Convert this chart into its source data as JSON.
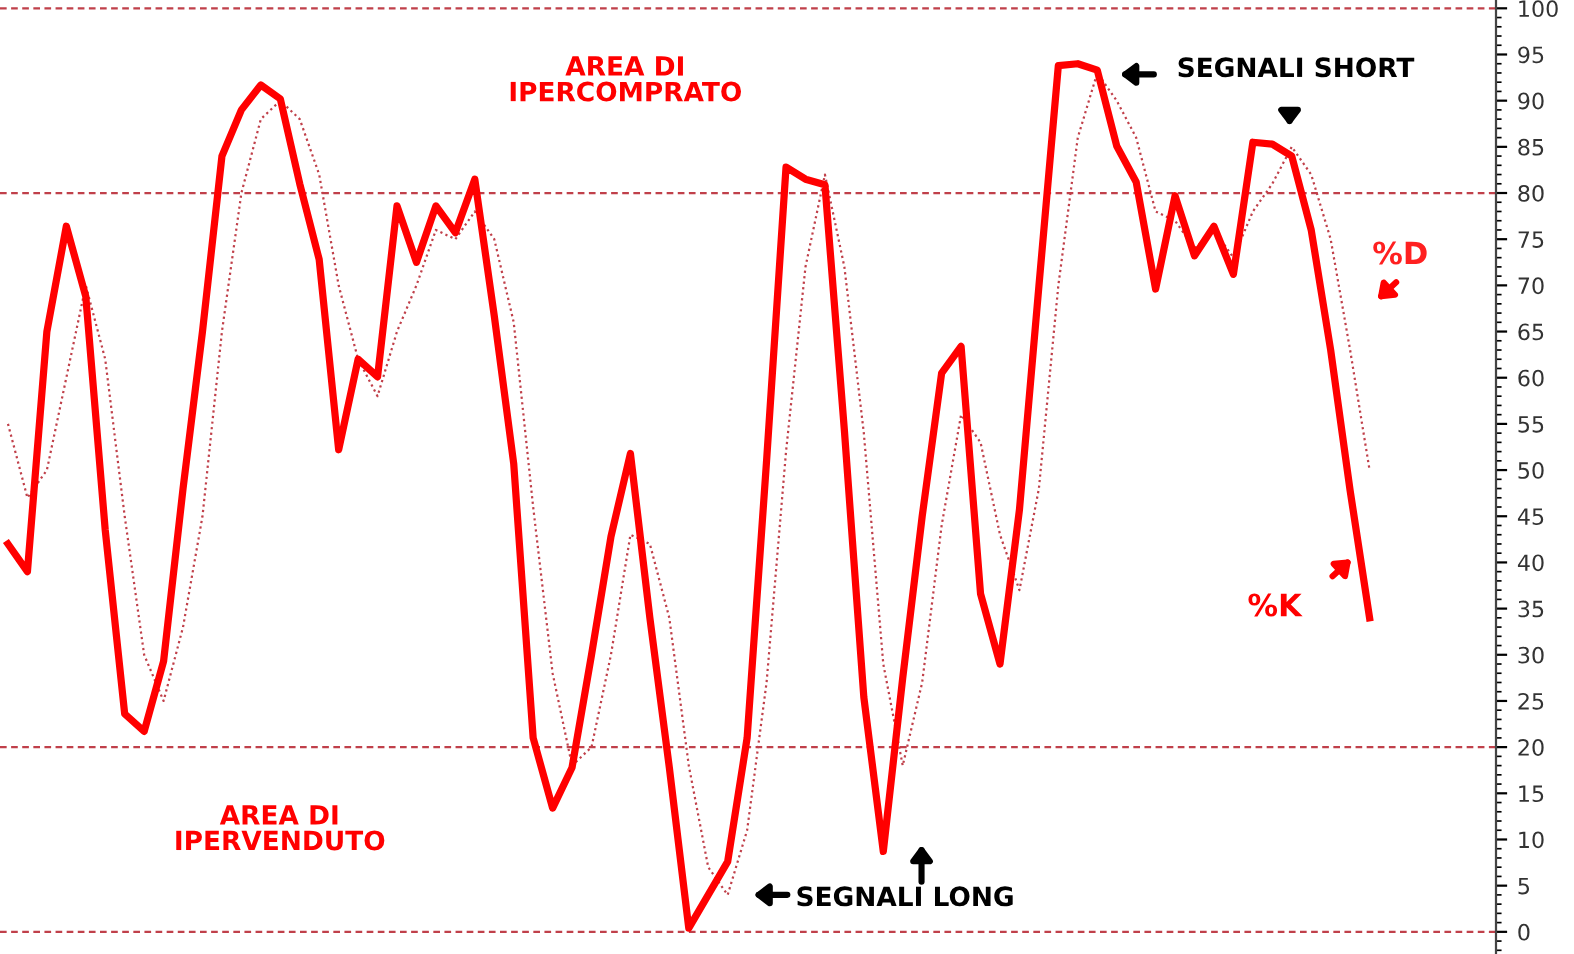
{
  "chart_data": {
    "type": "line",
    "categories": [
      null,
      null,
      null,
      null,
      null,
      null,
      null,
      null,
      null,
      null,
      null,
      null,
      null,
      null,
      null,
      null,
      null,
      null,
      null,
      null,
      null,
      null,
      null,
      null,
      null,
      null,
      null,
      null,
      null,
      null,
      null,
      null,
      null,
      null,
      null,
      null,
      null,
      null,
      null,
      null,
      null,
      null,
      null,
      null,
      null,
      null,
      null,
      null,
      null,
      null,
      null,
      null,
      null,
      null,
      null,
      null,
      null,
      null,
      null,
      null,
      null,
      null,
      null,
      null,
      null,
      null,
      null,
      null,
      null,
      null,
      null
    ],
    "series": [
      {
        "name": "%K",
        "color": "#ff0000",
        "line_style": "solid",
        "values": [
          42,
          39,
          65,
          76.4,
          68.8,
          43.5,
          23.6,
          21.7,
          29.3,
          48,
          65,
          84,
          89,
          91.7,
          90.2,
          81,
          72.8,
          52.2,
          62,
          60.1,
          78.6,
          72.5,
          78.6,
          75.7,
          81.5,
          66.7,
          50.7,
          21,
          13.4,
          17.8,
          30,
          42.8,
          51.8,
          34,
          17.8,
          0.4,
          4,
          7.6,
          21,
          51,
          82.8,
          81.5,
          80.9,
          54.3,
          25.4,
          8.7,
          27.5,
          45,
          60.5,
          63.4,
          36.6,
          29,
          45.7,
          69.9,
          93.8,
          94,
          93.3,
          85.1,
          81.2,
          69.6,
          79.7,
          73.2,
          76.4,
          71.2,
          85.5,
          85.3,
          84,
          76,
          63,
          47.8,
          34
        ]
      },
      {
        "name": "%D",
        "color": "#c0404a",
        "line_style": "dotted",
        "values": [
          55,
          47,
          50,
          60,
          70,
          62,
          45,
          30,
          25,
          33,
          45,
          65,
          80,
          88,
          90,
          88,
          82,
          70,
          62,
          58,
          65,
          70,
          76,
          75,
          78,
          75,
          66,
          46,
          28,
          18,
          20,
          30,
          43,
          42,
          34,
          18,
          7,
          4,
          11,
          27,
          52,
          72,
          82,
          72,
          54,
          29,
          18,
          27,
          44,
          56,
          53,
          43,
          37,
          48,
          70,
          86,
          93,
          90,
          86,
          78,
          77,
          74,
          76,
          73,
          78,
          81,
          85,
          82,
          75,
          63,
          50
        ]
      }
    ],
    "ylim": [
      -2.4,
      100.9
    ],
    "yticks": [
      0,
      5,
      10,
      15,
      20,
      25,
      30,
      35,
      40,
      45,
      50,
      55,
      60,
      65,
      70,
      75,
      80,
      85,
      90,
      95,
      100
    ],
    "tick_labels": "y",
    "grid": false,
    "legend": false,
    "marker": "none",
    "ref_lines": [
      {
        "axis": "y",
        "value": 100,
        "color": "#c0404a",
        "line_style": "dashed"
      },
      {
        "axis": "y",
        "value": 80,
        "color": "#c0404a",
        "line_style": "dashed"
      },
      {
        "axis": "y",
        "value": 20,
        "color": "#c0404a",
        "line_style": "dashed"
      },
      {
        "axis": "y",
        "value": 0,
        "color": "#c0404a",
        "line_style": "dashed"
      }
    ],
    "annotations": [
      "AREA DI\nIPERCOMPRATO",
      "SEGNALI SHORT",
      "AREA DI\nIPERVENDUTO",
      "SEGNALI LONG"
    ]
  }
}
